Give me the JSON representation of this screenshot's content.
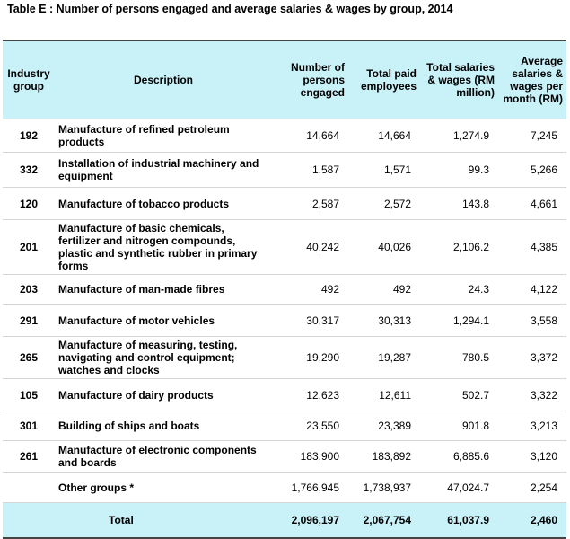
{
  "title": "Table E : Number of persons engaged and average salaries & wages by group, 2014",
  "table": {
    "header": [
      "Industry group",
      "Description",
      "Number of persons engaged",
      "Total paid employees",
      "Total salaries & wages (RM million)",
      "Average salaries & wages per month (RM)"
    ],
    "rows": [
      [
        "192",
        "Manufacture of refined petroleum products",
        "14,664",
        "14,664",
        "1,274.9",
        "7,245"
      ],
      [
        "332",
        "Installation of industrial machinery and equipment",
        "1,587",
        "1,571",
        "99.3",
        "5,266"
      ],
      [
        "120",
        "Manufacture of tobacco products",
        "2,587",
        "2,572",
        "143.8",
        "4,661"
      ],
      [
        "201",
        "Manufacture of basic chemicals, fertilizer and nitrogen compounds, plastic and synthetic rubber in primary forms",
        "40,242",
        "40,026",
        "2,106.2",
        "4,385"
      ],
      [
        "203",
        "Manufacture of man-made fibres",
        "492",
        "492",
        "24.3",
        "4,122"
      ],
      [
        "291",
        "Manufacture of motor vehicles",
        "30,317",
        "30,313",
        "1,294.1",
        "3,558"
      ],
      [
        "265",
        "Manufacture of measuring, testing, navigating and control equipment; watches and clocks",
        "19,290",
        "19,287",
        "780.5",
        "3,372"
      ],
      [
        "105",
        "Manufacture of dairy products",
        "12,623",
        "12,611",
        "502.7",
        "3,322"
      ],
      [
        "301",
        "Building of ships and boats",
        "23,550",
        "23,389",
        "901.8",
        "3,213"
      ],
      [
        "261",
        "Manufacture of electronic components and boards",
        "183,900",
        "183,892",
        "6,885.6",
        "3,120"
      ]
    ],
    "other": [
      "Other groups *",
      "1,766,945",
      "1,738,937",
      "47,024.7",
      "2,254"
    ],
    "total": [
      "Total",
      "2,096,197",
      "2,067,754",
      "61,037.9",
      "2,460"
    ]
  }
}
